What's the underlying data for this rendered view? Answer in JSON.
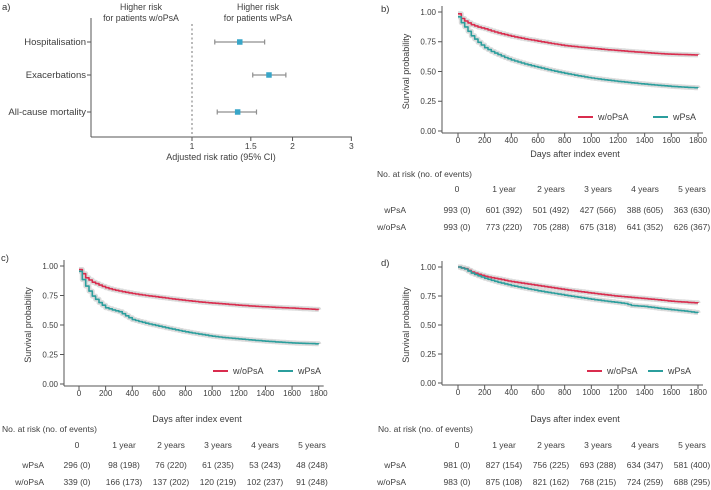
{
  "panel_labels": {
    "a": "a)",
    "b": "b)",
    "c": "c)",
    "d": "d)"
  },
  "colors": {
    "red": "#d92c4e",
    "teal": "#2b9e9d",
    "band": "#d2d2d2",
    "marker_blue": "#38a6c8",
    "ci_gray": "#8f8f8f",
    "axis": "#555555",
    "text": "#3d3d3d"
  },
  "chart_data": [
    {
      "panel": "a",
      "type": "scatter",
      "subtype": "forest",
      "headers": {
        "left": [
          "Higher risk",
          "for patients w/oPsA"
        ],
        "right": [
          "Higher risk",
          "for patients wPsA"
        ]
      },
      "xlabel": "Adjusted risk ratio (95% CI)",
      "x_scale": "log",
      "xlim": [
        0.5,
        3
      ],
      "x_ticks": [
        "1",
        "1.5",
        "2",
        "3"
      ],
      "x_tick_values": [
        1,
        1.5,
        2,
        3
      ],
      "reference_line": 1,
      "rows": [
        {
          "label": "Hospitalisation",
          "estimate": 1.39,
          "ci_low": 1.17,
          "ci_high": 1.65
        },
        {
          "label": "Exacerbations",
          "estimate": 1.7,
          "ci_low": 1.52,
          "ci_high": 1.91
        },
        {
          "label": "All-cause mortality",
          "estimate": 1.37,
          "ci_low": 1.19,
          "ci_high": 1.56
        }
      ]
    },
    {
      "panel": "b",
      "type": "line",
      "xlabel": "Days after index event",
      "ylabel": "Survival probability",
      "xlim": [
        0,
        1800
      ],
      "ylim": [
        0,
        1
      ],
      "x_ticks": [
        0,
        200,
        400,
        600,
        800,
        1000,
        1200,
        1400,
        1600,
        1800
      ],
      "y_ticks": [
        "0.00",
        "0.25",
        "0.50",
        "0.75",
        "1.00"
      ],
      "band_color": "#d2d2d2",
      "legend": [
        {
          "label": "w/oPsA",
          "color": "#d92c4e"
        },
        {
          "label": "wPsA",
          "color": "#2b9e9d"
        }
      ],
      "series": [
        {
          "name": "w/oPsA",
          "color": "#d92c4e",
          "x": [
            0,
            25,
            50,
            100,
            150,
            200,
            250,
            300,
            350,
            400,
            450,
            500,
            600,
            700,
            800,
            900,
            1000,
            1100,
            1200,
            1300,
            1400,
            1500,
            1600,
            1700,
            1800
          ],
          "y": [
            0.985,
            0.945,
            0.924,
            0.893,
            0.873,
            0.859,
            0.84,
            0.824,
            0.81,
            0.797,
            0.785,
            0.774,
            0.755,
            0.735,
            0.718,
            0.706,
            0.696,
            0.685,
            0.676,
            0.667,
            0.659,
            0.651,
            0.645,
            0.642,
            0.639
          ]
        },
        {
          "name": "wPsA",
          "color": "#2b9e9d",
          "x": [
            0,
            25,
            50,
            100,
            150,
            200,
            250,
            300,
            350,
            400,
            450,
            500,
            600,
            700,
            800,
            900,
            1000,
            1100,
            1200,
            1300,
            1400,
            1500,
            1600,
            1700,
            1800
          ],
          "y": [
            0.96,
            0.91,
            0.875,
            0.8,
            0.745,
            0.7,
            0.668,
            0.642,
            0.618,
            0.597,
            0.58,
            0.563,
            0.535,
            0.508,
            0.485,
            0.464,
            0.445,
            0.43,
            0.417,
            0.405,
            0.394,
            0.384,
            0.375,
            0.368,
            0.363
          ]
        }
      ],
      "risk_table": {
        "title": "No. at risk (no. of events)",
        "columns": [
          "0",
          "1 year",
          "2 years",
          "3 years",
          "4 years",
          "5 years"
        ],
        "rows": [
          {
            "label": "wPsA",
            "values": [
              "993 (0)",
              "601 (392)",
              "501 (492)",
              "427 (566)",
              "388 (605)",
              "363 (630)"
            ]
          },
          {
            "label": "w/oPsA",
            "values": [
              "993 (0)",
              "773 (220)",
              "705 (288)",
              "675 (318)",
              "641 (352)",
              "626 (367)"
            ]
          }
        ]
      }
    },
    {
      "panel": "c",
      "type": "line",
      "xlabel": "Days after index event",
      "ylabel": "Survival probability",
      "xlim": [
        0,
        1800
      ],
      "ylim": [
        0,
        1
      ],
      "x_ticks": [
        0,
        200,
        400,
        600,
        800,
        1000,
        1200,
        1400,
        1600,
        1800
      ],
      "y_ticks": [
        "0.00",
        "0.25",
        "0.50",
        "0.75",
        "1.00"
      ],
      "band_color": "#d2d2d2",
      "legend": [
        {
          "label": "w/oPsA",
          "color": "#d92c4e"
        },
        {
          "label": "wPsA",
          "color": "#2b9e9d"
        }
      ],
      "series": [
        {
          "name": "w/oPsA",
          "color": "#d92c4e",
          "x": [
            0,
            25,
            50,
            100,
            150,
            200,
            250,
            300,
            350,
            400,
            450,
            500,
            600,
            700,
            800,
            900,
            1000,
            1100,
            1200,
            1300,
            1400,
            1500,
            1600,
            1700,
            1800
          ],
          "y": [
            0.97,
            0.935,
            0.9,
            0.863,
            0.838,
            0.816,
            0.8,
            0.788,
            0.777,
            0.767,
            0.758,
            0.75,
            0.736,
            0.721,
            0.708,
            0.696,
            0.686,
            0.677,
            0.668,
            0.66,
            0.654,
            0.648,
            0.643,
            0.637,
            0.631
          ]
        },
        {
          "name": "wPsA",
          "color": "#2b9e9d",
          "x": [
            0,
            25,
            50,
            100,
            150,
            200,
            250,
            300,
            350,
            400,
            450,
            500,
            600,
            700,
            800,
            900,
            1000,
            1100,
            1200,
            1300,
            1400,
            1500,
            1600,
            1700,
            1800
          ],
          "y": [
            0.955,
            0.885,
            0.83,
            0.745,
            0.69,
            0.646,
            0.628,
            0.613,
            0.578,
            0.546,
            0.53,
            0.515,
            0.49,
            0.465,
            0.442,
            0.423,
            0.405,
            0.392,
            0.382,
            0.372,
            0.363,
            0.355,
            0.348,
            0.344,
            0.34
          ]
        }
      ],
      "risk_table": {
        "title": "No. at risk (no. of events)",
        "columns": [
          "0",
          "1 year",
          "2 years",
          "3 years",
          "4 years",
          "5 years"
        ],
        "rows": [
          {
            "label": "wPsA",
            "values": [
              "296 (0)",
              "98 (198)",
              "76 (220)",
              "61 (235)",
              "53 (243)",
              "48 (248)"
            ]
          },
          {
            "label": "w/oPsA",
            "values": [
              "339 (0)",
              "166 (173)",
              "137 (202)",
              "120 (219)",
              "102 (237)",
              "91 (248)"
            ]
          }
        ]
      }
    },
    {
      "panel": "d",
      "type": "line",
      "xlabel": "Days after index event",
      "ylabel": "Survival probability",
      "xlim": [
        0,
        1800
      ],
      "ylim": [
        0,
        1
      ],
      "x_ticks": [
        0,
        200,
        400,
        600,
        800,
        1000,
        1200,
        1400,
        1600,
        1800
      ],
      "y_ticks": [
        "0.00",
        "0.25",
        "0.50",
        "0.75",
        "1.00"
      ],
      "band_color": "#d2d2d2",
      "legend": [
        {
          "label": "w/oPsA",
          "color": "#d92c4e"
        },
        {
          "label": "wPsA",
          "color": "#2b9e9d"
        }
      ],
      "series": [
        {
          "name": "w/oPsA",
          "color": "#d92c4e",
          "x": [
            0,
            50,
            100,
            150,
            200,
            250,
            300,
            350,
            400,
            500,
            600,
            700,
            800,
            900,
            1000,
            1100,
            1200,
            1250,
            1300,
            1400,
            1500,
            1600,
            1700,
            1800
          ],
          "y": [
            1.0,
            0.985,
            0.956,
            0.937,
            0.92,
            0.908,
            0.897,
            0.885,
            0.874,
            0.857,
            0.84,
            0.822,
            0.805,
            0.79,
            0.775,
            0.761,
            0.748,
            0.743,
            0.738,
            0.728,
            0.717,
            0.705,
            0.697,
            0.69
          ]
        },
        {
          "name": "wPsA",
          "color": "#2b9e9d",
          "x": [
            0,
            50,
            100,
            150,
            200,
            250,
            300,
            350,
            400,
            500,
            600,
            700,
            800,
            900,
            1000,
            1100,
            1200,
            1250,
            1300,
            1400,
            1500,
            1600,
            1700,
            1800
          ],
          "y": [
            1.0,
            0.983,
            0.947,
            0.924,
            0.903,
            0.885,
            0.868,
            0.854,
            0.84,
            0.817,
            0.795,
            0.776,
            0.757,
            0.74,
            0.722,
            0.707,
            0.693,
            0.685,
            0.668,
            0.66,
            0.645,
            0.632,
            0.62,
            0.605
          ]
        }
      ],
      "risk_table": {
        "title": "No. at risk (no. of events)",
        "columns": [
          "0",
          "1 year",
          "2 years",
          "3 years",
          "4 years",
          "5 years"
        ],
        "rows": [
          {
            "label": "wPsA",
            "values": [
              "981 (0)",
              "827 (154)",
              "756 (225)",
              "693 (288)",
              "634 (347)",
              "581 (400)"
            ]
          },
          {
            "label": "w/oPsA",
            "values": [
              "983 (0)",
              "875 (108)",
              "821 (162)",
              "768 (215)",
              "724 (259)",
              "688 (295)"
            ]
          }
        ]
      }
    }
  ]
}
